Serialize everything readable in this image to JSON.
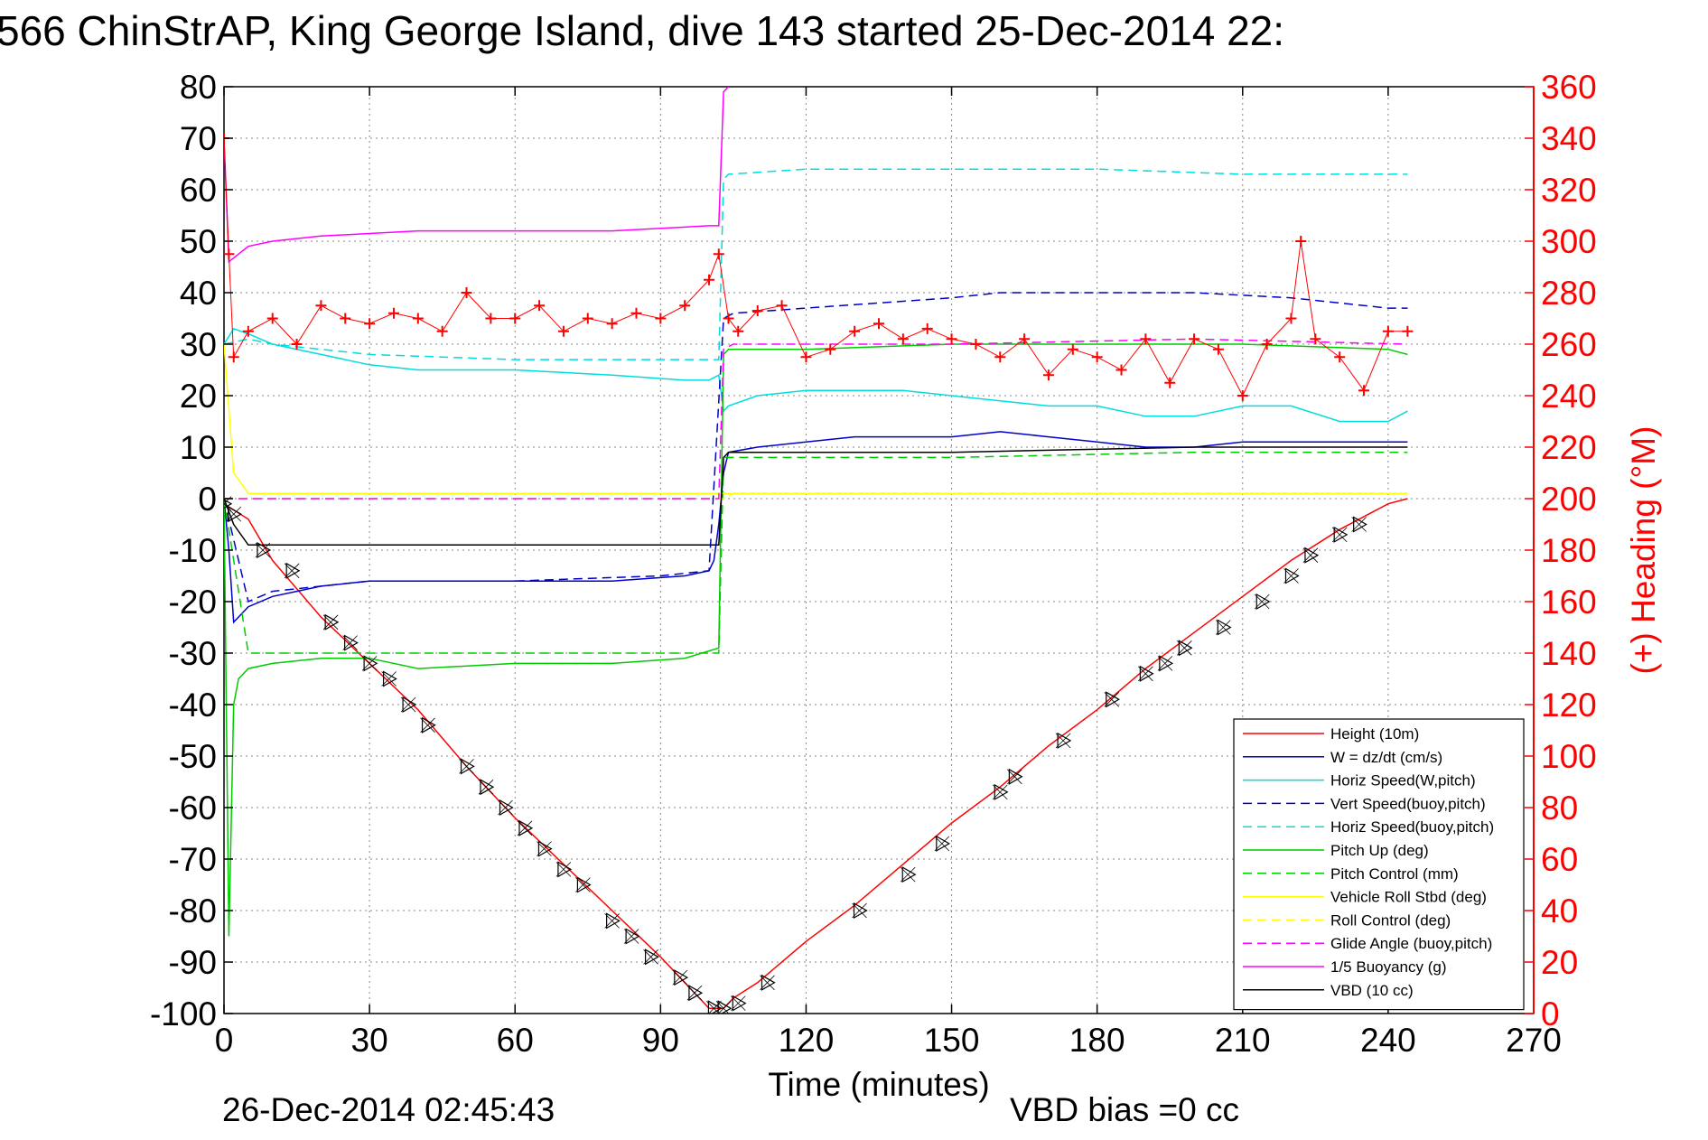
{
  "chart_data": {
    "type": "line",
    "title": "566 ChinStrAP, King George Island, dive 143 started 25-Dec-2014 22:",
    "xlabel": "Time (minutes)",
    "ylabel": "",
    "y2label": "(+) Heading (°M)",
    "xlim": [
      0,
      270
    ],
    "ylim": [
      -100,
      80
    ],
    "y2lim": [
      0,
      360
    ],
    "x_ticks": [
      "0",
      "30",
      "60",
      "90",
      "120",
      "150",
      "180",
      "210",
      "240",
      "270"
    ],
    "y_ticks": [
      "80",
      "70",
      "60",
      "50",
      "40",
      "30",
      "20",
      "10",
      "0",
      "-10",
      "-20",
      "-30",
      "-40",
      "-50",
      "-60",
      "-70",
      "-80",
      "-90",
      "-100"
    ],
    "y2_ticks": [
      "360",
      "340",
      "320",
      "300",
      "280",
      "260",
      "240",
      "220",
      "200",
      "180",
      "160",
      "140",
      "120",
      "100",
      "80",
      "60",
      "40",
      "20",
      "0"
    ],
    "grid": true,
    "legend_position": "lower-right",
    "footer_left": "26-Dec-2014 02:45:43",
    "footer_right": "VBD bias =0 cc",
    "colors": {
      "heading": "#ff0000",
      "axis_right": "#ff0000"
    },
    "series": [
      {
        "name": "Height (10m)",
        "color": "#ff0000",
        "dash": "solid",
        "x": [
          0,
          5,
          10,
          20,
          30,
          40,
          50,
          60,
          70,
          80,
          90,
          95,
          100,
          103,
          105,
          110,
          120,
          130,
          140,
          150,
          160,
          170,
          180,
          190,
          200,
          210,
          220,
          230,
          240,
          244
        ],
        "y": [
          -1,
          -4,
          -12,
          -23,
          -32,
          -41,
          -52,
          -62,
          -71,
          -80,
          -89,
          -94,
          -99,
          -99,
          -97,
          -94,
          -86,
          -79,
          -71,
          -63,
          -56,
          -48,
          -41,
          -33,
          -26,
          -19,
          -12,
          -6,
          -1,
          0
        ]
      },
      {
        "name": "W = dz/dt (cm/s)",
        "color": "#0000cc",
        "dash": "solid",
        "x": [
          0,
          1,
          2,
          5,
          10,
          15,
          20,
          30,
          40,
          60,
          80,
          95,
          100,
          101,
          102,
          103,
          104,
          110,
          120,
          130,
          150,
          160,
          170,
          180,
          190,
          200,
          210,
          220,
          230,
          240,
          244
        ],
        "y": [
          0,
          -10,
          -24,
          -21,
          -19,
          -18,
          -17,
          -16,
          -16,
          -16,
          -16,
          -15,
          -14,
          -12,
          -5,
          5,
          9,
          10,
          11,
          12,
          12,
          13,
          12,
          11,
          10,
          10,
          11,
          11,
          11,
          11,
          11
        ]
      },
      {
        "name": "Horiz Speed(W,pitch)",
        "color": "#00dddd",
        "dash": "solid",
        "x": [
          0,
          2,
          5,
          10,
          20,
          30,
          40,
          60,
          80,
          95,
          100,
          102,
          103,
          104,
          110,
          120,
          140,
          160,
          170,
          180,
          190,
          200,
          210,
          220,
          230,
          240,
          244
        ],
        "y": [
          30,
          33,
          32,
          30,
          28,
          26,
          25,
          25,
          24,
          23,
          23,
          24,
          17,
          18,
          20,
          21,
          21,
          19,
          18,
          18,
          16,
          16,
          18,
          18,
          15,
          15,
          17
        ]
      },
      {
        "name": "Vert Speed(buoy,pitch)",
        "color": "#0000cc",
        "dash": "dashed",
        "x": [
          0,
          5,
          10,
          30,
          60,
          90,
          100,
          103,
          105,
          120,
          150,
          160,
          180,
          200,
          220,
          240,
          244
        ],
        "y": [
          0,
          -20,
          -18,
          -16,
          -16,
          -15,
          -14,
          35,
          36,
          37,
          39,
          40,
          40,
          40,
          39,
          37,
          37
        ]
      },
      {
        "name": "Horiz Speed(buoy,pitch)",
        "color": "#00dddd",
        "dash": "dashed",
        "x": [
          0,
          5,
          10,
          30,
          60,
          90,
          102,
          103,
          104,
          120,
          150,
          180,
          210,
          240,
          244
        ],
        "y": [
          30,
          31,
          30,
          28,
          27,
          27,
          27,
          62,
          63,
          64,
          64,
          64,
          63,
          63,
          63
        ]
      },
      {
        "name": "Pitch Up (deg)",
        "color": "#00cc00",
        "dash": "solid",
        "x": [
          0,
          1,
          2,
          3,
          5,
          10,
          20,
          30,
          40,
          60,
          80,
          95,
          102,
          103,
          104,
          120,
          150,
          180,
          210,
          240,
          244
        ],
        "y": [
          0,
          -85,
          -40,
          -35,
          -33,
          -32,
          -31,
          -31,
          -33,
          -32,
          -32,
          -31,
          -29,
          28,
          29,
          29,
          30,
          30,
          30,
          29,
          28
        ]
      },
      {
        "name": "Pitch Control (mm)",
        "color": "#00cc00",
        "dash": "dashed",
        "x": [
          0,
          5,
          100,
          102,
          103,
          104,
          150,
          200,
          244
        ],
        "y": [
          0,
          -30,
          -30,
          -30,
          8,
          8,
          8,
          9,
          9
        ]
      },
      {
        "name": "Vehicle Roll Stbd (deg)",
        "color": "#ffff00",
        "dash": "solid",
        "x": [
          0,
          2,
          5,
          10,
          20,
          40,
          60,
          80,
          100,
          103,
          105,
          120,
          150,
          180,
          210,
          240,
          244
        ],
        "y": [
          30,
          5,
          1,
          1,
          1,
          1,
          1,
          1,
          1,
          1,
          1,
          1,
          1,
          1,
          1,
          1,
          1
        ]
      },
      {
        "name": "Roll Control (deg)",
        "color": "#ffff00",
        "dash": "dashed",
        "x": [
          0,
          5,
          100,
          103,
          105,
          150,
          200,
          244
        ],
        "y": [
          0,
          0,
          0,
          0,
          1,
          1,
          1,
          1
        ]
      },
      {
        "name": "Glide Angle (buoy,pitch)",
        "color": "#ff00ff",
        "dash": "dashed",
        "x": [
          0,
          5,
          100,
          102,
          103,
          105,
          150,
          200,
          244
        ],
        "y": [
          0,
          0,
          0,
          0,
          29,
          30,
          30,
          31,
          30
        ]
      },
      {
        "name": "1/5 Buoyancy (g)",
        "color": "#ff00ff",
        "dash": "solid",
        "x": [
          0,
          1,
          5,
          10,
          20,
          40,
          60,
          80,
          100,
          102,
          103,
          104
        ],
        "y": [
          70,
          46,
          49,
          50,
          51,
          52,
          52,
          52,
          53,
          53,
          79,
          80
        ]
      },
      {
        "name": "VBD (10 cc)",
        "color": "#000000",
        "dash": "solid",
        "x": [
          0,
          2,
          5,
          100,
          102,
          103,
          104,
          150,
          200,
          244
        ],
        "y": [
          0,
          -5,
          -9,
          -9,
          -9,
          8,
          9,
          9,
          10,
          10
        ]
      },
      {
        "name": "Heading",
        "color": "#ff0000",
        "axis": "right",
        "marker": "+",
        "x": [
          0,
          1,
          2,
          5,
          10,
          15,
          20,
          25,
          30,
          35,
          40,
          45,
          50,
          55,
          60,
          65,
          70,
          75,
          80,
          85,
          90,
          95,
          100,
          102,
          104,
          106,
          110,
          115,
          120,
          125,
          130,
          135,
          140,
          145,
          150,
          155,
          160,
          165,
          170,
          175,
          180,
          185,
          190,
          195,
          200,
          205,
          210,
          215,
          220,
          222,
          225,
          230,
          235,
          240,
          244
        ],
        "y": [
          340,
          295,
          255,
          265,
          270,
          260,
          275,
          270,
          268,
          272,
          270,
          265,
          280,
          270,
          270,
          275,
          265,
          270,
          268,
          272,
          270,
          275,
          285,
          295,
          270,
          265,
          273,
          275,
          255,
          258,
          265,
          268,
          262,
          266,
          262,
          260,
          255,
          262,
          248,
          258,
          255,
          250,
          262,
          245,
          262,
          258,
          240,
          260,
          270,
          300,
          262,
          255,
          242,
          265,
          265
        ]
      }
    ],
    "markers": {
      "symbol": "triangle",
      "x": [
        0,
        2,
        8,
        14,
        22,
        26,
        30,
        34,
        38,
        42,
        50,
        54,
        58,
        62,
        66,
        70,
        74,
        80,
        84,
        88,
        94,
        97,
        101,
        103,
        106,
        112,
        131,
        141,
        148,
        160,
        163,
        173,
        183,
        190,
        194,
        198,
        206,
        214,
        220,
        224,
        230,
        234
      ],
      "y": [
        -1,
        -3,
        -10,
        -14,
        -24,
        -28,
        -32,
        -35,
        -40,
        -44,
        -52,
        -56,
        -60,
        -64,
        -68,
        -72,
        -75,
        -82,
        -85,
        -89,
        -93,
        -96,
        -99,
        -99,
        -98,
        -94,
        -80,
        -73,
        -67,
        -57,
        -54,
        -47,
        -39,
        -34,
        -32,
        -29,
        -25,
        -20,
        -15,
        -11,
        -7,
        -5
      ]
    }
  }
}
